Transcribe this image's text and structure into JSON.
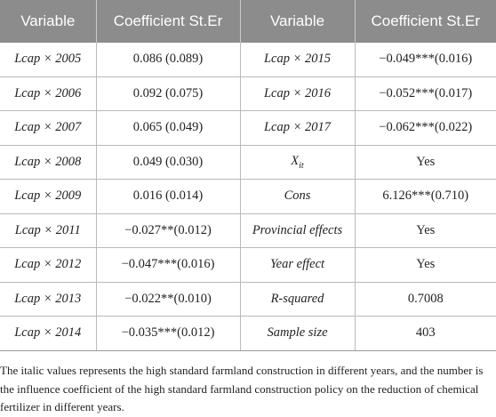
{
  "table": {
    "headers": [
      "Variable",
      "Coefficient St.Er",
      "Variable",
      "Coefficient St.Er"
    ],
    "rows": [
      [
        "Lcap × 2005",
        "0.086 (0.089)",
        "Lcap × 2015",
        "−0.049***(0.016)"
      ],
      [
        "Lcap × 2006",
        "0.092 (0.075)",
        "Lcap × 2016",
        "−0.052***(0.017)"
      ],
      [
        "Lcap × 2007",
        "0.065 (0.049)",
        "Lcap × 2017",
        "−0.062***(0.022)"
      ],
      [
        "Lcap × 2008",
        "0.049 (0.030)",
        "X",
        "Yes"
      ],
      [
        "Lcap × 2009",
        "0.016 (0.014)",
        "Cons",
        "6.126***(0.710)"
      ],
      [
        "Lcap × 2011",
        "−0.027**(0.012)",
        "Provincial effects",
        "Yes"
      ],
      [
        "Lcap × 2012",
        "−0.047***(0.016)",
        "Year effect",
        "Yes"
      ],
      [
        "Lcap × 2013",
        "−0.022**(0.010)",
        "R-squared",
        "0.7008"
      ],
      [
        "Lcap × 2014",
        "−0.035***(0.012)",
        "Sample size",
        "403"
      ]
    ],
    "x_subscript": "it"
  },
  "note": "The italic values represents the high standard farmland construction in different years, and the number is the influence coefficient of the high standard farmland construction policy on the reduction of chemical fertilizer in different years.",
  "colors": {
    "header_bg": "#8c8c8c",
    "header_text": "#ffffff",
    "rule": "#b9b9b9"
  }
}
